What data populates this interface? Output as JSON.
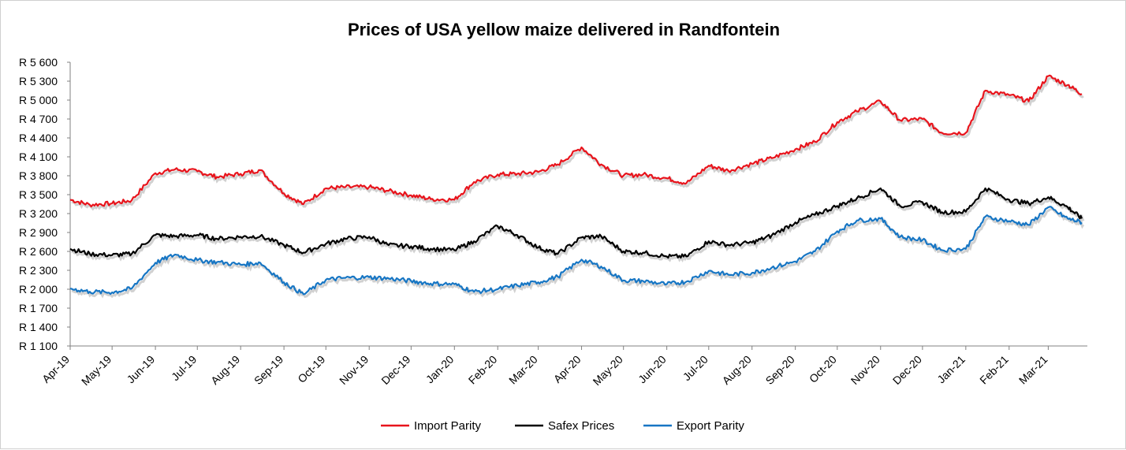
{
  "chart_data": {
    "type": "line",
    "title": "Prices of USA yellow maize delivered in Randfontein",
    "xlabel": "",
    "ylabel": "",
    "ylim": [
      1100,
      5600
    ],
    "y_ticks": [
      "R 1 100",
      "R 1 400",
      "R 1 700",
      "R 2 000",
      "R 2 300",
      "R 2 600",
      "R 2 900",
      "R 3 200",
      "R 3 500",
      "R 3 800",
      "R 4 100",
      "R 4 400",
      "R 4 700",
      "R 5 000",
      "R 5 300",
      "R 5 600"
    ],
    "x_ticks": [
      "Apr-19",
      "May-19",
      "Jun-19",
      "Jul-19",
      "Aug-19",
      "Sep-19",
      "Oct-19",
      "Nov-19",
      "Dec-19",
      "Jan-20",
      "Feb-20",
      "Mar-20",
      "Apr-20",
      "May-20",
      "Jun-20",
      "Jul-20",
      "Aug-20",
      "Sep-20",
      "Oct-20",
      "Nov-20",
      "Dec-20",
      "Jan-21",
      "Feb-21",
      "Mar-21"
    ],
    "grid": false,
    "legend_position": "bottom",
    "x": [
      "2019-04-01",
      "2019-04-15",
      "2019-05-01",
      "2019-05-15",
      "2019-06-01",
      "2019-06-15",
      "2019-07-01",
      "2019-07-15",
      "2019-08-01",
      "2019-08-15",
      "2019-09-01",
      "2019-09-15",
      "2019-10-01",
      "2019-10-15",
      "2019-11-01",
      "2019-11-15",
      "2019-12-01",
      "2019-12-15",
      "2020-01-01",
      "2020-01-15",
      "2020-02-01",
      "2020-02-15",
      "2020-03-01",
      "2020-03-15",
      "2020-04-01",
      "2020-04-15",
      "2020-05-01",
      "2020-05-15",
      "2020-06-01",
      "2020-06-15",
      "2020-07-01",
      "2020-07-15",
      "2020-08-01",
      "2020-08-15",
      "2020-09-01",
      "2020-09-15",
      "2020-10-01",
      "2020-10-15",
      "2020-11-01",
      "2020-11-15",
      "2020-12-01",
      "2020-12-15",
      "2021-01-01",
      "2021-01-15",
      "2021-02-01",
      "2021-02-15",
      "2021-03-01",
      "2021-03-15",
      "2021-03-25"
    ],
    "series": [
      {
        "name": "Import Parity",
        "color": "#e8141c",
        "values": [
          3420,
          3340,
          3360,
          3410,
          3840,
          3900,
          3870,
          3780,
          3830,
          3890,
          3520,
          3350,
          3600,
          3620,
          3620,
          3560,
          3490,
          3430,
          3420,
          3700,
          3820,
          3830,
          3860,
          3980,
          4250,
          3980,
          3800,
          3820,
          3760,
          3680,
          3960,
          3880,
          3990,
          4080,
          4220,
          4340,
          4650,
          4820,
          4980,
          4680,
          4700,
          4480,
          4480,
          5150,
          5080,
          4980,
          5380,
          5240,
          5100
        ]
      },
      {
        "name": "Safex Prices",
        "color": "#000000",
        "values": [
          2640,
          2560,
          2540,
          2560,
          2860,
          2840,
          2860,
          2800,
          2830,
          2840,
          2700,
          2580,
          2720,
          2800,
          2830,
          2700,
          2680,
          2640,
          2620,
          2760,
          3000,
          2860,
          2660,
          2560,
          2820,
          2840,
          2600,
          2580,
          2520,
          2520,
          2760,
          2700,
          2740,
          2850,
          3060,
          3180,
          3320,
          3440,
          3600,
          3320,
          3380,
          3220,
          3230,
          3600,
          3420,
          3360,
          3460,
          3300,
          3120
        ]
      },
      {
        "name": "Export Parity",
        "color": "#1776c4",
        "values": [
          2010,
          1960,
          1950,
          2010,
          2420,
          2550,
          2460,
          2430,
          2390,
          2420,
          2110,
          1920,
          2150,
          2180,
          2190,
          2170,
          2130,
          2090,
          2080,
          1960,
          2000,
          2060,
          2110,
          2200,
          2470,
          2360,
          2140,
          2130,
          2080,
          2120,
          2290,
          2230,
          2260,
          2340,
          2440,
          2600,
          2920,
          3090,
          3120,
          2830,
          2780,
          2620,
          2640,
          3150,
          3080,
          3020,
          3300,
          3120,
          3060
        ]
      }
    ]
  }
}
